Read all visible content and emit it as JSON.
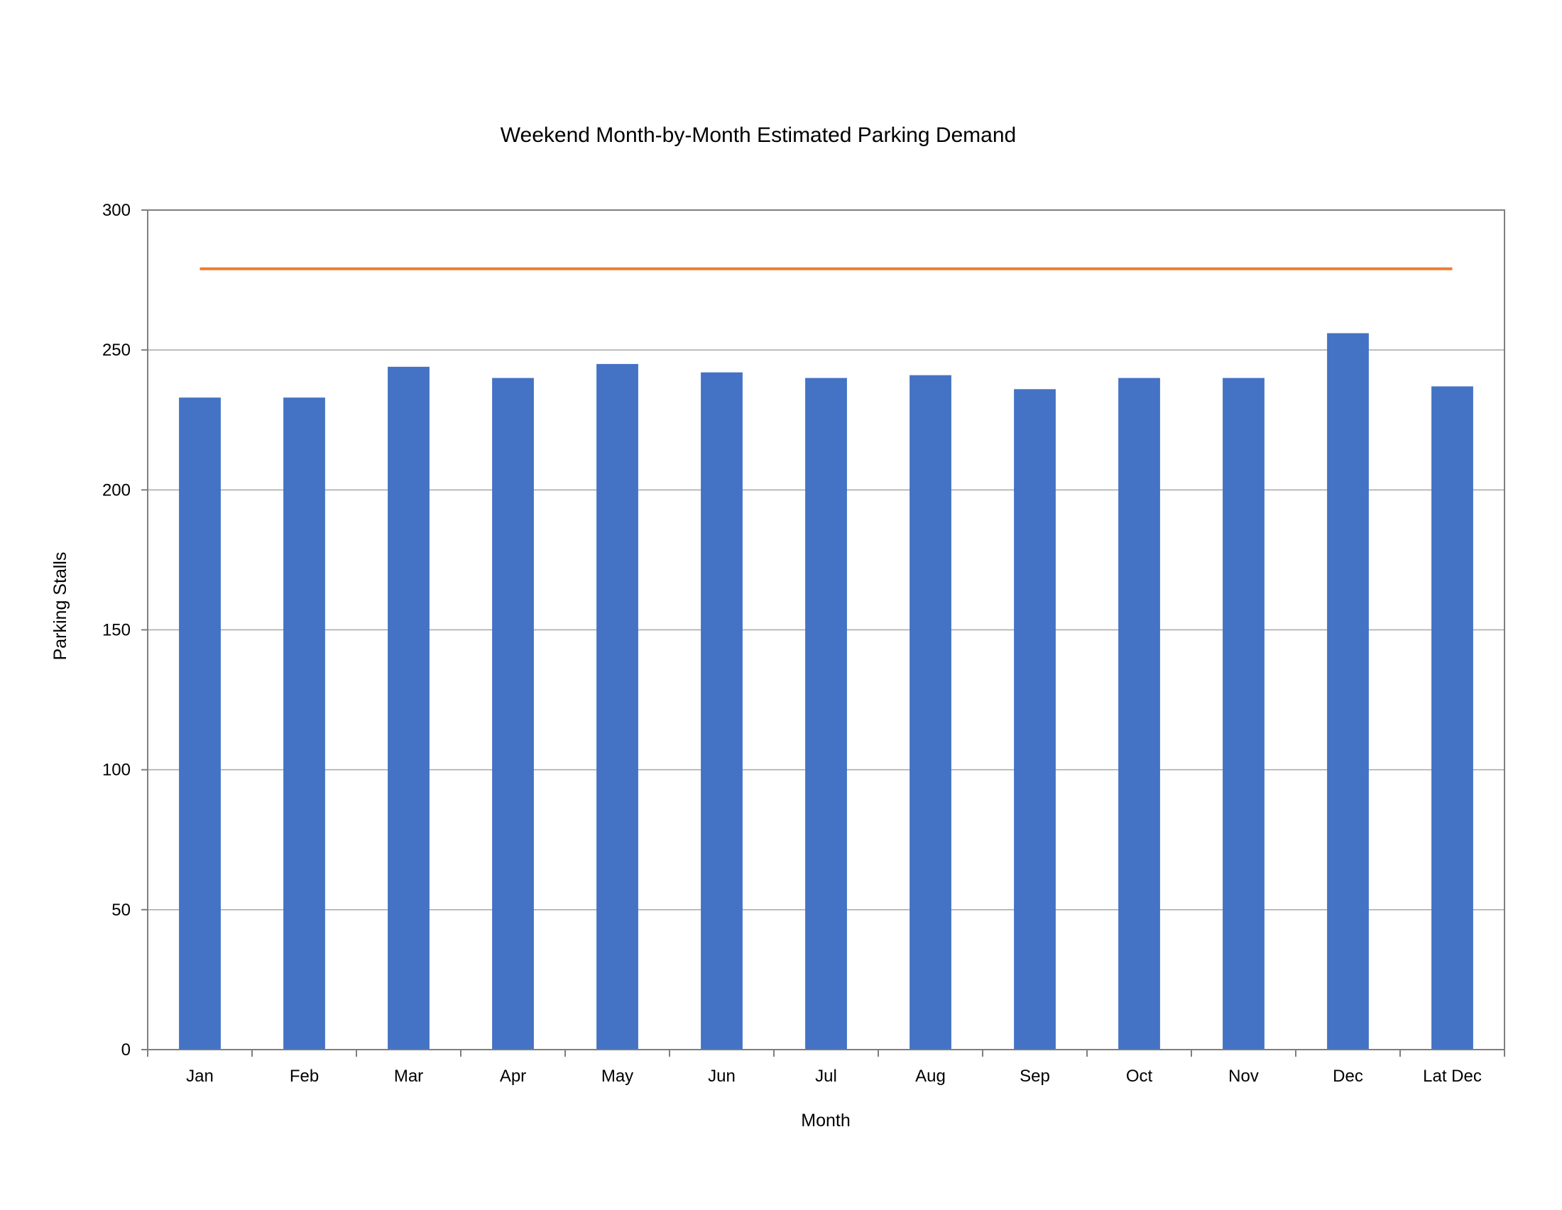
{
  "chart_data": {
    "type": "bar",
    "title": "Weekend Month-by-Month Estimated Parking Demand",
    "xlabel": "Month",
    "ylabel": "Parking Stalls",
    "categories": [
      "Jan",
      "Feb",
      "Mar",
      "Apr",
      "May",
      "Jun",
      "Jul",
      "Aug",
      "Sep",
      "Oct",
      "Nov",
      "Dec",
      "Lat Dec"
    ],
    "series": [
      {
        "type": "bar",
        "color": "#4472C4",
        "values": [
          233,
          233,
          244,
          240,
          245,
          242,
          240,
          241,
          236,
          240,
          240,
          256,
          237
        ]
      },
      {
        "type": "line",
        "color": "#ED7D31",
        "values": [
          279,
          279,
          279,
          279,
          279,
          279,
          279,
          279,
          279,
          279,
          279,
          279,
          279
        ]
      }
    ],
    "ylim": [
      0,
      300
    ],
    "yticks": [
      0,
      50,
      100,
      150,
      200,
      250,
      300
    ],
    "grid": true,
    "legend": "none"
  }
}
